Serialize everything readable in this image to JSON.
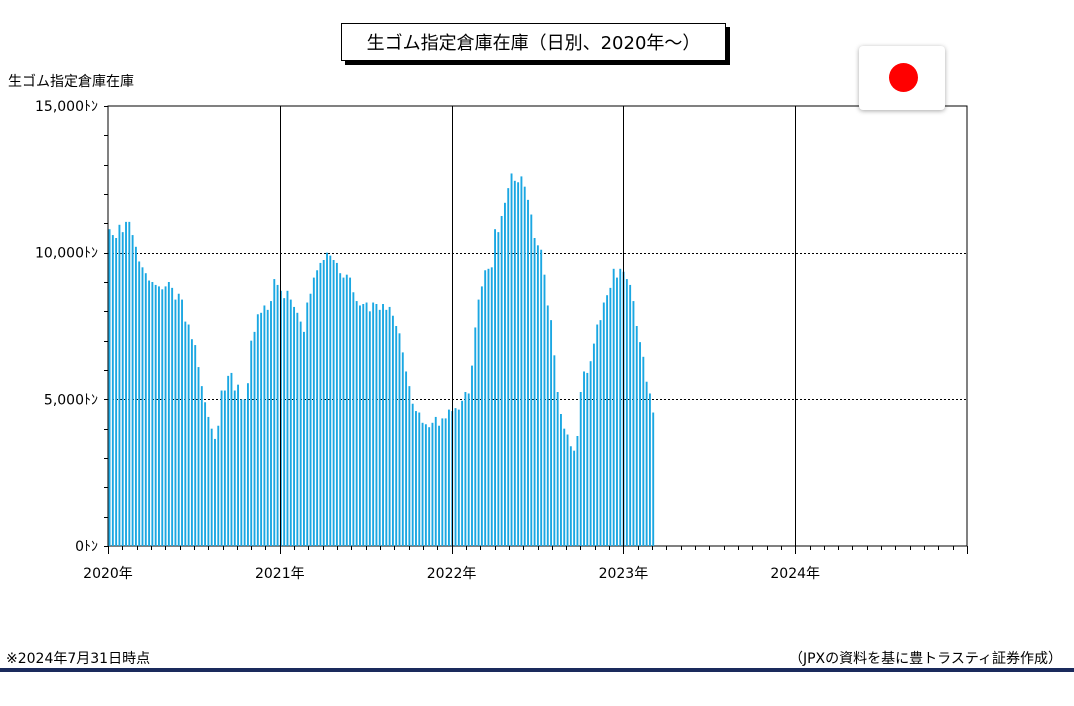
{
  "chart_data": {
    "type": "bar",
    "title": "生ゴム指定倉庫在庫（日別、2020年～）",
    "ylabel": "生ゴム指定倉庫在庫",
    "xlabel": "",
    "ylim": [
      0,
      15000
    ],
    "yticks": [
      0,
      5000,
      10000,
      15000
    ],
    "ytick_labels": [
      "0ﾄﾝ",
      "5,000ﾄﾝ",
      "10,000ﾄﾝ",
      "15,000ﾄﾝ"
    ],
    "year_labels": [
      "2020年",
      "2021年",
      "2022年",
      "2023年",
      "2024年"
    ],
    "period": {
      "start_year": 2020,
      "end_year": 2025
    },
    "grid": "dashed horizontal at 5,000 and 10,000; solid vertical at year boundaries",
    "bar_color": "#1aa7e2",
    "values": [
      10800,
      10600,
      10500,
      10950,
      10700,
      11050,
      11050,
      10600,
      10200,
      9700,
      9500,
      9300,
      9050,
      9000,
      8900,
      8850,
      8750,
      8850,
      9000,
      8800,
      8400,
      8600,
      8400,
      7650,
      7550,
      7050,
      6850,
      6100,
      5450,
      4900,
      4400,
      4000,
      3650,
      4100,
      5300,
      5300,
      5800,
      5900,
      5300,
      5500,
      5000,
      5000,
      5550,
      7000,
      7300,
      7900,
      7950,
      8200,
      8050,
      8350,
      9100,
      8900,
      8700,
      8450,
      8700,
      8400,
      8150,
      7950,
      7650,
      7300,
      8300,
      8600,
      9150,
      9400,
      9650,
      9750,
      10000,
      9900,
      9750,
      9650,
      9300,
      9150,
      9250,
      9150,
      8650,
      8350,
      8200,
      8250,
      8300,
      8000,
      8300,
      8250,
      8050,
      8250,
      8050,
      8150,
      7850,
      7500,
      7250,
      6600,
      5950,
      5450,
      4850,
      4600,
      4550,
      4200,
      4150,
      4050,
      4200,
      4400,
      4100,
      4350,
      4350,
      4650,
      4600,
      4700,
      4650,
      4950,
      5250,
      5200,
      6150,
      7450,
      8400,
      8850,
      9400,
      9450,
      9500,
      10800,
      10700,
      11250,
      11700,
      12200,
      12700,
      12450,
      12400,
      12600,
      12250,
      11800,
      11300,
      10500,
      10250,
      10100,
      9250,
      8200,
      7700,
      6500,
      5250,
      4500,
      4000,
      3800,
      3400,
      3250,
      3750,
      5250,
      5950,
      5900,
      6300,
      6900,
      7550,
      7700,
      8300,
      8550,
      8800,
      9450,
      9150,
      9450,
      9350,
      9100,
      8900,
      8350,
      7500,
      6950,
      6450,
      5600,
      5200,
      4550
    ]
  },
  "footnote": "※2024年7月31日時点",
  "source": "（JPXの資料を基に豊トラスティ証券作成）",
  "flag": {
    "name": "japan-flag",
    "color": "#ff0000"
  }
}
